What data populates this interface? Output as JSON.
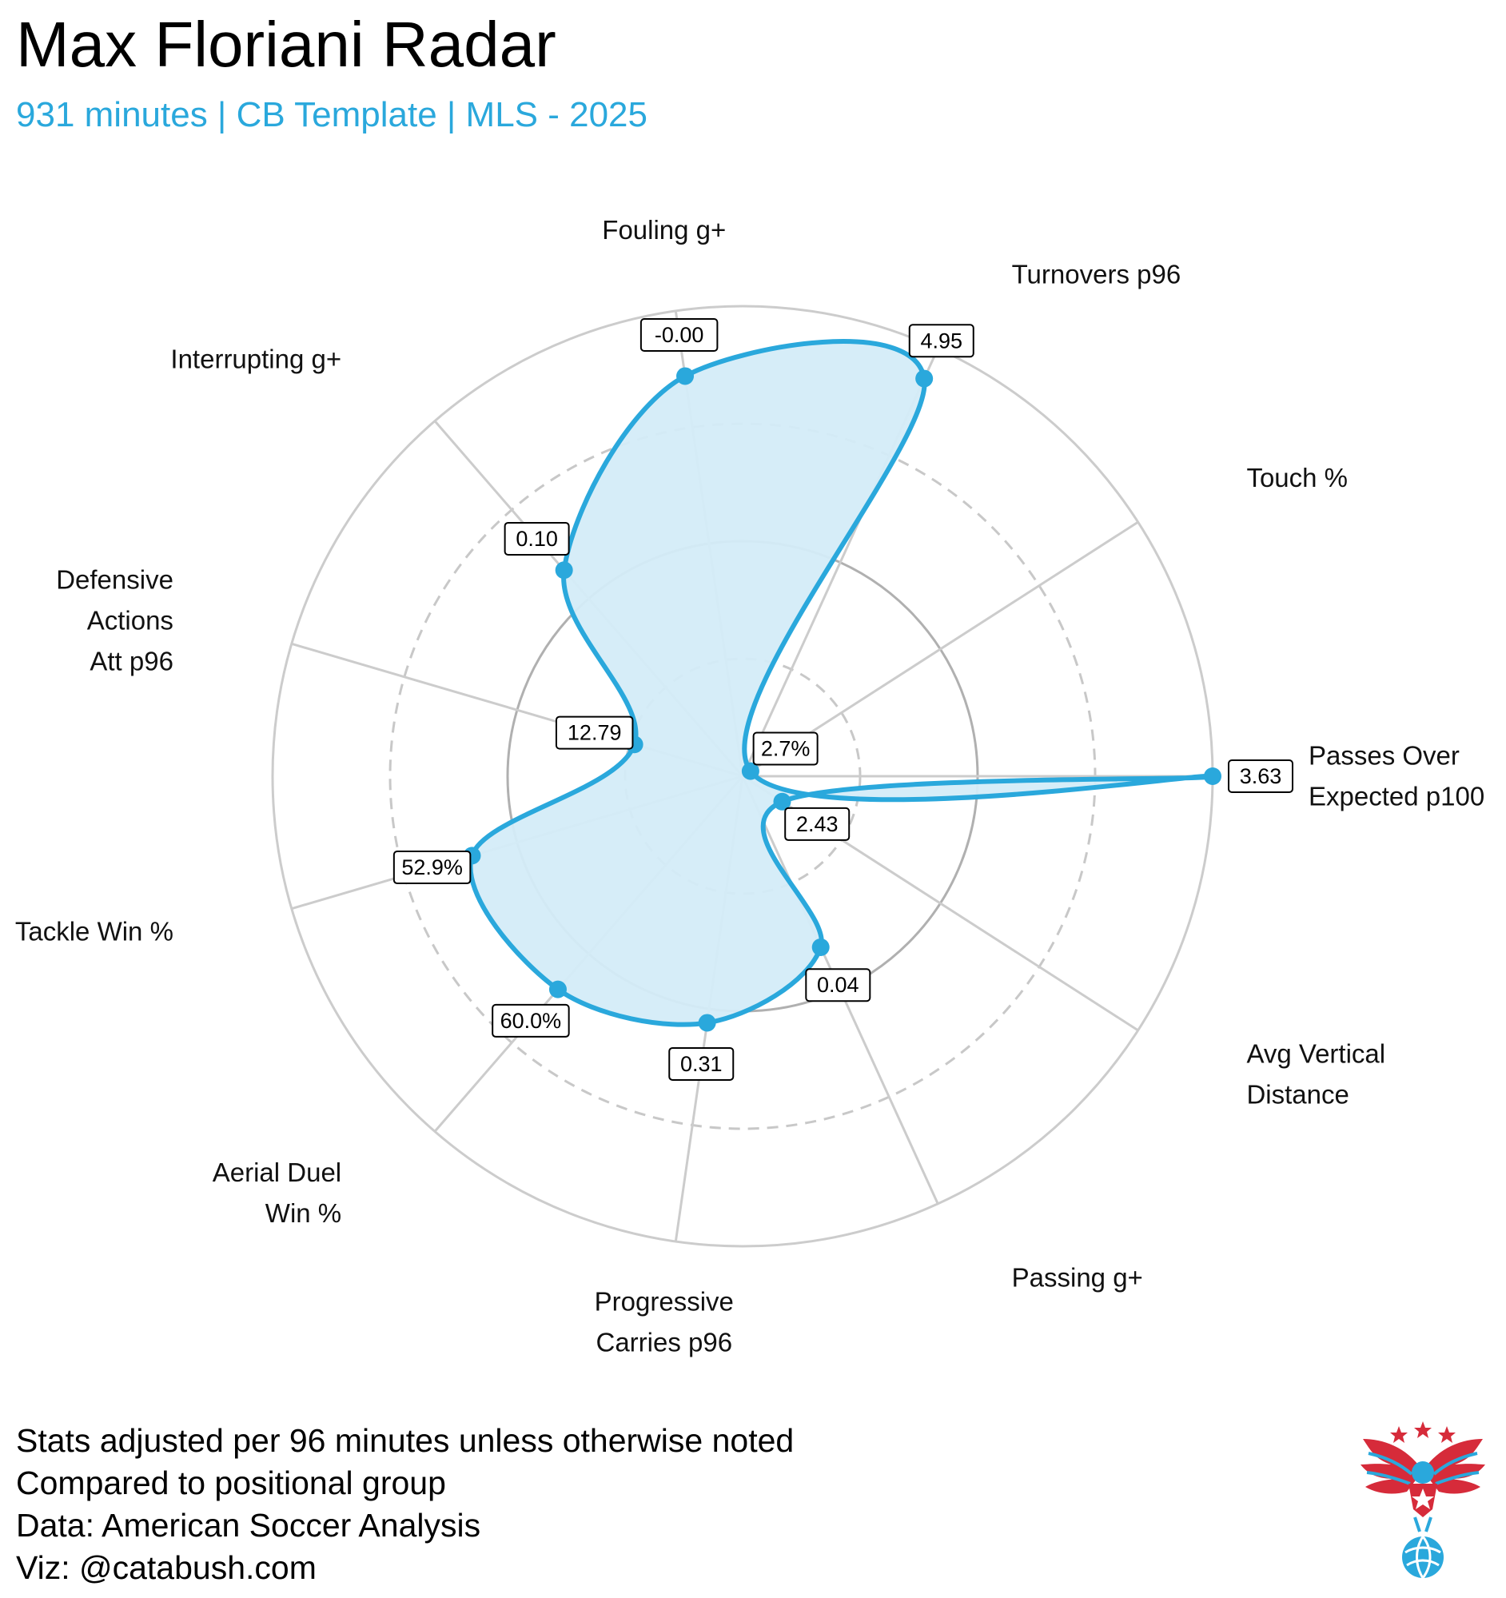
{
  "header": {
    "title": "Max Floriani Radar",
    "subtitle": "931 minutes | CB Template | MLS - 2025"
  },
  "footer": {
    "lines": [
      "Stats adjusted per 96 minutes unless otherwise noted",
      "Compared to positional group",
      "Data: American Soccer Analysis",
      "Viz: @catabush.com"
    ]
  },
  "colors": {
    "accent": "#2aa8dc",
    "fill": "#d4ecf8",
    "grid": "#cccccc",
    "logo_red": "#d62b3a",
    "logo_blue": "#2aa8dc"
  },
  "chart_data": {
    "type": "radar",
    "title": "Max Floriani Radar",
    "subtitle": "931 minutes | CB Template | MLS - 2025",
    "scale": "percentile",
    "range": [
      0,
      100
    ],
    "grid_rings": [
      25,
      50,
      75,
      100
    ],
    "dashed_rings": [
      25,
      75
    ],
    "axes": [
      {
        "label_lines": [
          "Passes Over",
          "Expected p100"
        ],
        "value_label": "3.63",
        "percentile": 100
      },
      {
        "label_lines": [
          "Avg Vertical",
          "Distance"
        ],
        "value_label": "2.43",
        "percentile": 10
      },
      {
        "label_lines": [
          "Passing g+"
        ],
        "value_label": "0.04",
        "percentile": 40
      },
      {
        "label_lines": [
          "Progressive",
          "Carries p96"
        ],
        "value_label": "0.31",
        "percentile": 53
      },
      {
        "label_lines": [
          "Aerial Duel",
          "Win %"
        ],
        "value_label": "60.0%",
        "percentile": 60
      },
      {
        "label_lines": [
          "Tackle Win %"
        ],
        "value_label": "52.9%",
        "percentile": 60
      },
      {
        "label_lines": [
          "Defensive",
          "Actions",
          "Att p96"
        ],
        "value_label": "12.79",
        "percentile": 24
      },
      {
        "label_lines": [
          "Interrupting g+"
        ],
        "value_label": "0.10",
        "percentile": 58
      },
      {
        "label_lines": [
          "Fouling g+"
        ],
        "value_label": "-0.00",
        "percentile": 86
      },
      {
        "label_lines": [
          "Turnovers p96"
        ],
        "value_label": "4.95",
        "percentile": 93
      },
      {
        "label_lines": [
          "Touch %"
        ],
        "value_label": "2.7%",
        "percentile": 2
      }
    ]
  }
}
